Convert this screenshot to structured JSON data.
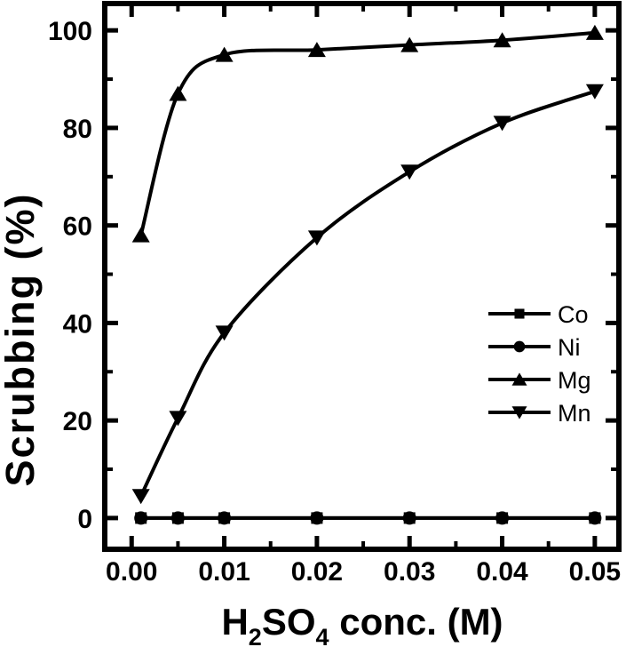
{
  "chart_data": {
    "type": "line",
    "title": "",
    "xlabel_parts": [
      {
        "text": "H",
        "subscript": false
      },
      {
        "text": "2",
        "subscript": true
      },
      {
        "text": "SO",
        "subscript": false
      },
      {
        "text": "4",
        "subscript": true
      },
      {
        "text": " conc. (M)",
        "subscript": false
      }
    ],
    "ylabel": "Scrubbing (%)",
    "x": [
      0.001,
      0.005,
      0.01,
      0.02,
      0.03,
      0.04,
      0.05
    ],
    "series": [
      {
        "name": "Co",
        "marker": "square",
        "smooth": false,
        "values": [
          0,
          0,
          0,
          0,
          0,
          0,
          0
        ]
      },
      {
        "name": "Ni",
        "marker": "circle",
        "smooth": false,
        "values": [
          0,
          0,
          0,
          0,
          0,
          0,
          0
        ]
      },
      {
        "name": "Mg",
        "marker": "triangle-up",
        "smooth": true,
        "values": [
          58,
          87,
          95,
          96,
          97,
          98,
          99.5
        ]
      },
      {
        "name": "Mn",
        "marker": "triangle-down",
        "smooth": true,
        "values": [
          4.5,
          20.5,
          38,
          57.5,
          71,
          81,
          87.5
        ]
      }
    ],
    "x_ticks": [
      {
        "value": 0.0,
        "label": "0.00"
      },
      {
        "value": 0.01,
        "label": "0.01"
      },
      {
        "value": 0.02,
        "label": "0.02"
      },
      {
        "value": 0.03,
        "label": "0.03"
      },
      {
        "value": 0.04,
        "label": "0.04"
      },
      {
        "value": 0.05,
        "label": "0.05"
      }
    ],
    "x_minor_ticks": [
      0.005,
      0.015,
      0.025,
      0.035,
      0.045
    ],
    "y_ticks": [
      {
        "value": 0,
        "label": "0"
      },
      {
        "value": 20,
        "label": "20"
      },
      {
        "value": 40,
        "label": "40"
      },
      {
        "value": 60,
        "label": "60"
      },
      {
        "value": 80,
        "label": "80"
      },
      {
        "value": 100,
        "label": "100"
      }
    ],
    "y_minor_ticks": [
      10,
      30,
      50,
      70,
      90
    ],
    "xlim": [
      -0.0029,
      0.0526
    ],
    "ylim": [
      -6.4,
      105.5
    ],
    "grid": false,
    "legend": {
      "position": "right-center",
      "entries": [
        "Co",
        "Ni",
        "Mg",
        "Mn"
      ]
    },
    "colors": {
      "foreground": "#000000",
      "background": "#ffffff"
    }
  }
}
